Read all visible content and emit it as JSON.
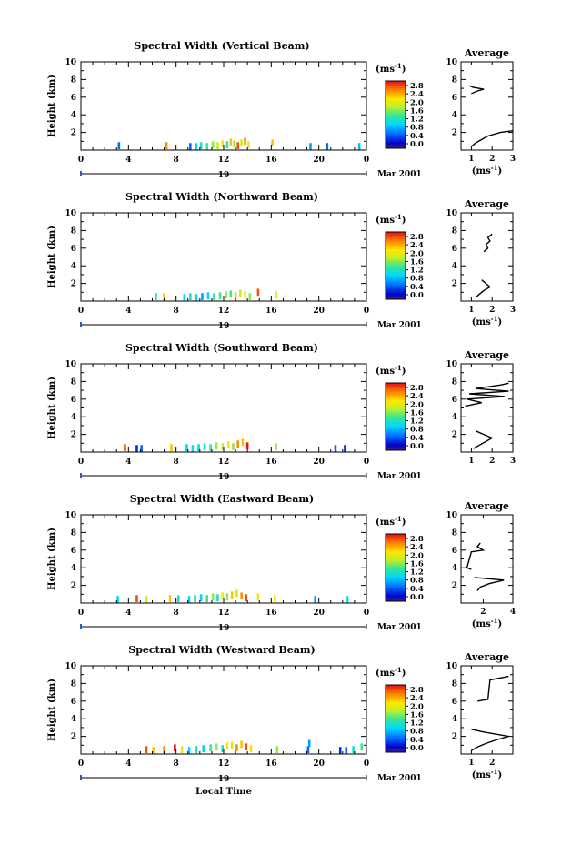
{
  "chart_data": [
    {
      "type": "heatmap",
      "title": "Spectral Width (Vertical Beam)",
      "ylabel": "Height (km)",
      "units": "(ms⁻¹)",
      "date_label": "Mar 2001",
      "day": "19",
      "xlim": [
        0,
        24
      ],
      "ylim": [
        0,
        10
      ],
      "xticks": [
        "0",
        "4",
        "8",
        "12",
        "16",
        "20",
        "0"
      ],
      "yticks": [
        "2",
        "4",
        "6",
        "8",
        "10"
      ],
      "colorbar_ticks": [
        "0.0",
        "0.4",
        "0.8",
        "1.2",
        "1.6",
        "2.0",
        "2.4",
        "2.8"
      ],
      "average": {
        "title": "Average",
        "xlabel": "(ms⁻¹)",
        "xlim": [
          0.5,
          3
        ],
        "ylim": [
          0,
          10
        ],
        "xticks": [
          "1",
          "2",
          "3"
        ],
        "yticks": [
          "2",
          "4",
          "6",
          "8",
          "10"
        ],
        "profile": [
          [
            1.0,
            0.4
          ],
          [
            1.2,
            0.8
          ],
          [
            1.5,
            1.2
          ],
          [
            1.8,
            1.6
          ],
          [
            2.4,
            2.0
          ],
          [
            3.0,
            2.2
          ]
        ],
        "profile_upper": [
          [
            1.0,
            6.4
          ],
          [
            1.3,
            6.7
          ],
          [
            1.6,
            6.9
          ],
          [
            1.1,
            7.1
          ],
          [
            0.9,
            7.3
          ]
        ]
      },
      "cells": [
        [
          3.1,
          0.5,
          0.6
        ],
        [
          7.1,
          0.5,
          2.4
        ],
        [
          9.1,
          0.4,
          0.6
        ],
        [
          9.6,
          0.4,
          1.0
        ],
        [
          10.0,
          0.5,
          1.2
        ],
        [
          10.5,
          0.4,
          1.4
        ],
        [
          11.0,
          0.6,
          1.6
        ],
        [
          11.4,
          0.5,
          1.8
        ],
        [
          11.8,
          0.7,
          2.0
        ],
        [
          12.2,
          0.6,
          1.4
        ],
        [
          12.5,
          0.9,
          2.2
        ],
        [
          12.8,
          0.7,
          1.6
        ],
        [
          13.1,
          0.5,
          2.6
        ],
        [
          13.4,
          0.8,
          1.8
        ],
        [
          13.7,
          1.0,
          2.4
        ],
        [
          14.0,
          0.6,
          2.0
        ],
        [
          16.0,
          0.8,
          2.2
        ],
        [
          19.2,
          0.4,
          0.8
        ],
        [
          20.6,
          0.4,
          0.6
        ],
        [
          23.3,
          0.4,
          0.9
        ]
      ]
    },
    {
      "type": "heatmap",
      "title": "Spectral Width (Northward Beam)",
      "ylabel": "Height (km)",
      "units": "(ms⁻¹)",
      "date_label": "Mar 2001",
      "day": "19",
      "xlim": [
        0,
        24
      ],
      "ylim": [
        0,
        10
      ],
      "xticks": [
        "0",
        "4",
        "8",
        "12",
        "16",
        "20",
        "0"
      ],
      "yticks": [
        "2",
        "4",
        "6",
        "8",
        "10"
      ],
      "colorbar_ticks": [
        "0.0",
        "0.4",
        "0.8",
        "1.2",
        "1.6",
        "2.0",
        "2.4",
        "2.8"
      ],
      "average": {
        "title": "Average",
        "xlabel": "(ms⁻¹)",
        "xlim": [
          0.5,
          3
        ],
        "ylim": [
          0,
          10
        ],
        "xticks": [
          "1",
          "2",
          "3"
        ],
        "yticks": [
          "2",
          "4",
          "6",
          "8",
          "10"
        ],
        "profile": [
          [
            1.2,
            0.4
          ],
          [
            1.4,
            0.8
          ],
          [
            1.6,
            1.2
          ],
          [
            1.9,
            1.6
          ],
          [
            1.7,
            2.0
          ],
          [
            1.5,
            2.4
          ]
        ],
        "profile_upper": [
          [
            1.6,
            5.6
          ],
          [
            1.8,
            6.0
          ],
          [
            1.7,
            6.4
          ],
          [
            1.9,
            6.8
          ],
          [
            1.8,
            7.2
          ],
          [
            2.0,
            7.6
          ]
        ]
      },
      "cells": [
        [
          6.2,
          0.5,
          1.2
        ],
        [
          6.9,
          0.5,
          2.2
        ],
        [
          8.6,
          0.4,
          1.0
        ],
        [
          9.1,
          0.5,
          1.2
        ],
        [
          9.6,
          0.4,
          1.0
        ],
        [
          10.1,
          0.5,
          0.8
        ],
        [
          10.6,
          0.6,
          1.0
        ],
        [
          11.1,
          0.5,
          1.2
        ],
        [
          11.6,
          0.6,
          1.4
        ],
        [
          12.1,
          0.7,
          1.6
        ],
        [
          12.5,
          0.8,
          1.4
        ],
        [
          12.9,
          0.6,
          2.2
        ],
        [
          13.3,
          0.9,
          1.8
        ],
        [
          13.7,
          0.7,
          2.0
        ],
        [
          14.1,
          0.5,
          1.6
        ],
        [
          14.8,
          1.0,
          2.6
        ],
        [
          16.3,
          0.7,
          2.0
        ]
      ]
    },
    {
      "type": "heatmap",
      "title": "Spectral Width (Southward Beam)",
      "ylabel": "Height (km)",
      "units": "(ms⁻¹)",
      "date_label": "Mar 2001",
      "day": "19",
      "xlim": [
        0,
        24
      ],
      "ylim": [
        0,
        10
      ],
      "xticks": [
        "0",
        "4",
        "8",
        "12",
        "16",
        "20",
        "0"
      ],
      "yticks": [
        "2",
        "4",
        "6",
        "8",
        "10"
      ],
      "colorbar_ticks": [
        "0.0",
        "0.4",
        "0.8",
        "1.2",
        "1.6",
        "2.0",
        "2.4",
        "2.8"
      ],
      "average": {
        "title": "Average",
        "xlabel": "",
        "xlim": [
          0.5,
          3
        ],
        "ylim": [
          0,
          10
        ],
        "xticks": [
          "1",
          "2",
          "3"
        ],
        "yticks": [
          "2",
          "4",
          "6",
          "8",
          "10"
        ],
        "profile": [
          [
            1.1,
            0.4
          ],
          [
            1.4,
            0.8
          ],
          [
            1.7,
            1.2
          ],
          [
            2.0,
            1.6
          ],
          [
            1.6,
            2.0
          ],
          [
            1.2,
            2.4
          ]
        ],
        "profile_upper": [
          [
            0.7,
            5.2
          ],
          [
            1.5,
            5.6
          ],
          [
            0.8,
            6.0
          ],
          [
            2.6,
            6.3
          ],
          [
            0.9,
            6.6
          ],
          [
            2.8,
            6.9
          ],
          [
            1.2,
            7.2
          ],
          [
            2.4,
            7.6
          ],
          [
            2.8,
            7.8
          ]
        ]
      },
      "cells": [
        [
          3.6,
          0.5,
          2.6
        ],
        [
          4.6,
          0.4,
          0.4
        ],
        [
          5.0,
          0.4,
          0.6
        ],
        [
          7.5,
          0.5,
          2.2
        ],
        [
          8.8,
          0.5,
          1.0
        ],
        [
          9.3,
          0.4,
          1.2
        ],
        [
          9.8,
          0.5,
          1.0
        ],
        [
          10.3,
          0.6,
          1.2
        ],
        [
          10.8,
          0.5,
          1.4
        ],
        [
          11.3,
          0.7,
          1.6
        ],
        [
          11.8,
          0.6,
          1.8
        ],
        [
          12.3,
          0.8,
          2.0
        ],
        [
          12.7,
          0.6,
          1.6
        ],
        [
          13.1,
          0.9,
          2.4
        ],
        [
          13.5,
          1.1,
          2.2
        ],
        [
          13.9,
          0.7,
          2.8
        ],
        [
          16.3,
          0.6,
          1.6
        ],
        [
          21.3,
          0.4,
          0.6
        ],
        [
          22.1,
          0.4,
          0.4
        ]
      ]
    },
    {
      "type": "heatmap",
      "title": "Spectral Width (Eastward Beam)",
      "ylabel": "Height (km)",
      "units": "(ms⁻¹)",
      "date_label": "Mar 2001",
      "day": "19",
      "xlim": [
        0,
        24
      ],
      "ylim": [
        0,
        10
      ],
      "xticks": [
        "0",
        "4",
        "8",
        "12",
        "16",
        "20",
        "0"
      ],
      "yticks": [
        "2",
        "4",
        "6",
        "8",
        "10"
      ],
      "colorbar_ticks": [
        "0.0",
        "0.4",
        "0.8",
        "1.2",
        "1.6",
        "2.0",
        "2.4",
        "2.8"
      ],
      "average": {
        "title": "Average",
        "xlabel": "(ms⁻¹)",
        "xlim": [
          0.5,
          4
        ],
        "ylim": [
          0,
          10
        ],
        "xticks": [
          "2",
          "4"
        ],
        "yticks": [
          "2",
          "4",
          "6",
          "8",
          "10"
        ],
        "profile": [
          [
            1.6,
            1.4
          ],
          [
            1.8,
            1.8
          ],
          [
            2.4,
            2.2
          ],
          [
            3.4,
            2.6
          ],
          [
            1.4,
            2.9
          ]
        ],
        "profile_upper": [
          [
            1.2,
            3.8
          ],
          [
            0.9,
            4.0
          ],
          [
            1.2,
            5.8
          ],
          [
            2.0,
            6.0
          ],
          [
            1.6,
            6.4
          ],
          [
            1.8,
            6.8
          ]
        ]
      },
      "cells": [
        [
          3.0,
          0.4,
          1.0
        ],
        [
          4.6,
          0.5,
          2.6
        ],
        [
          5.4,
          0.4,
          1.8
        ],
        [
          7.4,
          0.5,
          2.2
        ],
        [
          8.1,
          0.5,
          1.2
        ],
        [
          9.0,
          0.4,
          1.0
        ],
        [
          9.5,
          0.5,
          1.2
        ],
        [
          10.0,
          0.6,
          1.0
        ],
        [
          10.5,
          0.5,
          1.4
        ],
        [
          11.0,
          0.7,
          1.6
        ],
        [
          11.4,
          0.6,
          1.2
        ],
        [
          11.8,
          0.8,
          2.0
        ],
        [
          12.2,
          0.7,
          1.6
        ],
        [
          12.6,
          0.9,
          2.2
        ],
        [
          13.0,
          1.1,
          1.8
        ],
        [
          13.4,
          0.8,
          2.4
        ],
        [
          13.8,
          0.6,
          2.6
        ],
        [
          14.8,
          0.7,
          2.0
        ],
        [
          16.2,
          0.5,
          2.0
        ],
        [
          19.6,
          0.4,
          0.8
        ],
        [
          22.3,
          0.4,
          1.2
        ]
      ]
    },
    {
      "type": "heatmap",
      "title": "Spectral Width (Westward Beam)",
      "ylabel": "Height (km)",
      "units": "(ms⁻¹)",
      "date_label": "Mar 2001",
      "day": "19",
      "xlabel": "Local Time",
      "xlim": [
        0,
        24
      ],
      "ylim": [
        0,
        10
      ],
      "xticks": [
        "0",
        "4",
        "8",
        "12",
        "16",
        "20",
        "0"
      ],
      "yticks": [
        "2",
        "4",
        "6",
        "8",
        "10"
      ],
      "colorbar_ticks": [
        "0.0",
        "0.4",
        "0.8",
        "1.2",
        "1.6",
        "2.0",
        "2.4",
        "2.8"
      ],
      "average": {
        "title": "Average",
        "xlabel": "(ms⁻¹)",
        "xlim": [
          0.5,
          3
        ],
        "ylim": [
          0,
          10
        ],
        "xticks": [
          "1",
          "2"
        ],
        "yticks": [
          "2",
          "4",
          "6",
          "8",
          "10"
        ],
        "profile": [
          [
            1.0,
            0.4
          ],
          [
            1.3,
            0.8
          ],
          [
            1.7,
            1.2
          ],
          [
            2.2,
            1.6
          ],
          [
            2.8,
            2.0
          ],
          [
            1.6,
            2.5
          ],
          [
            1.0,
            2.8
          ]
        ],
        "profile_upper": [
          [
            1.3,
            6.0
          ],
          [
            1.8,
            6.2
          ],
          [
            1.9,
            8.4
          ],
          [
            2.8,
            8.8
          ]
        ]
      },
      "cells": [
        [
          5.4,
          0.5,
          2.6
        ],
        [
          6.0,
          0.4,
          2.2
        ],
        [
          6.9,
          0.5,
          2.4
        ],
        [
          7.8,
          0.7,
          2.8
        ],
        [
          8.4,
          0.5,
          2.0
        ],
        [
          9.0,
          0.4,
          1.0
        ],
        [
          9.6,
          0.5,
          1.2
        ],
        [
          10.2,
          0.6,
          1.0
        ],
        [
          10.8,
          0.7,
          1.4
        ],
        [
          11.3,
          0.8,
          1.6
        ],
        [
          11.8,
          0.6,
          1.2
        ],
        [
          12.2,
          0.9,
          2.0
        ],
        [
          12.6,
          1.0,
          1.8
        ],
        [
          13.0,
          0.7,
          2.4
        ],
        [
          13.4,
          1.1,
          2.2
        ],
        [
          13.8,
          0.8,
          2.6
        ],
        [
          14.2,
          0.6,
          2.0
        ],
        [
          16.4,
          0.5,
          1.6
        ],
        [
          19.0,
          0.5,
          0.6
        ],
        [
          19.1,
          1.2,
          0.8
        ],
        [
          21.7,
          0.4,
          0.4
        ],
        [
          22.2,
          0.4,
          0.6
        ],
        [
          22.8,
          0.5,
          1.2
        ],
        [
          23.5,
          0.8,
          1.4
        ]
      ]
    }
  ]
}
